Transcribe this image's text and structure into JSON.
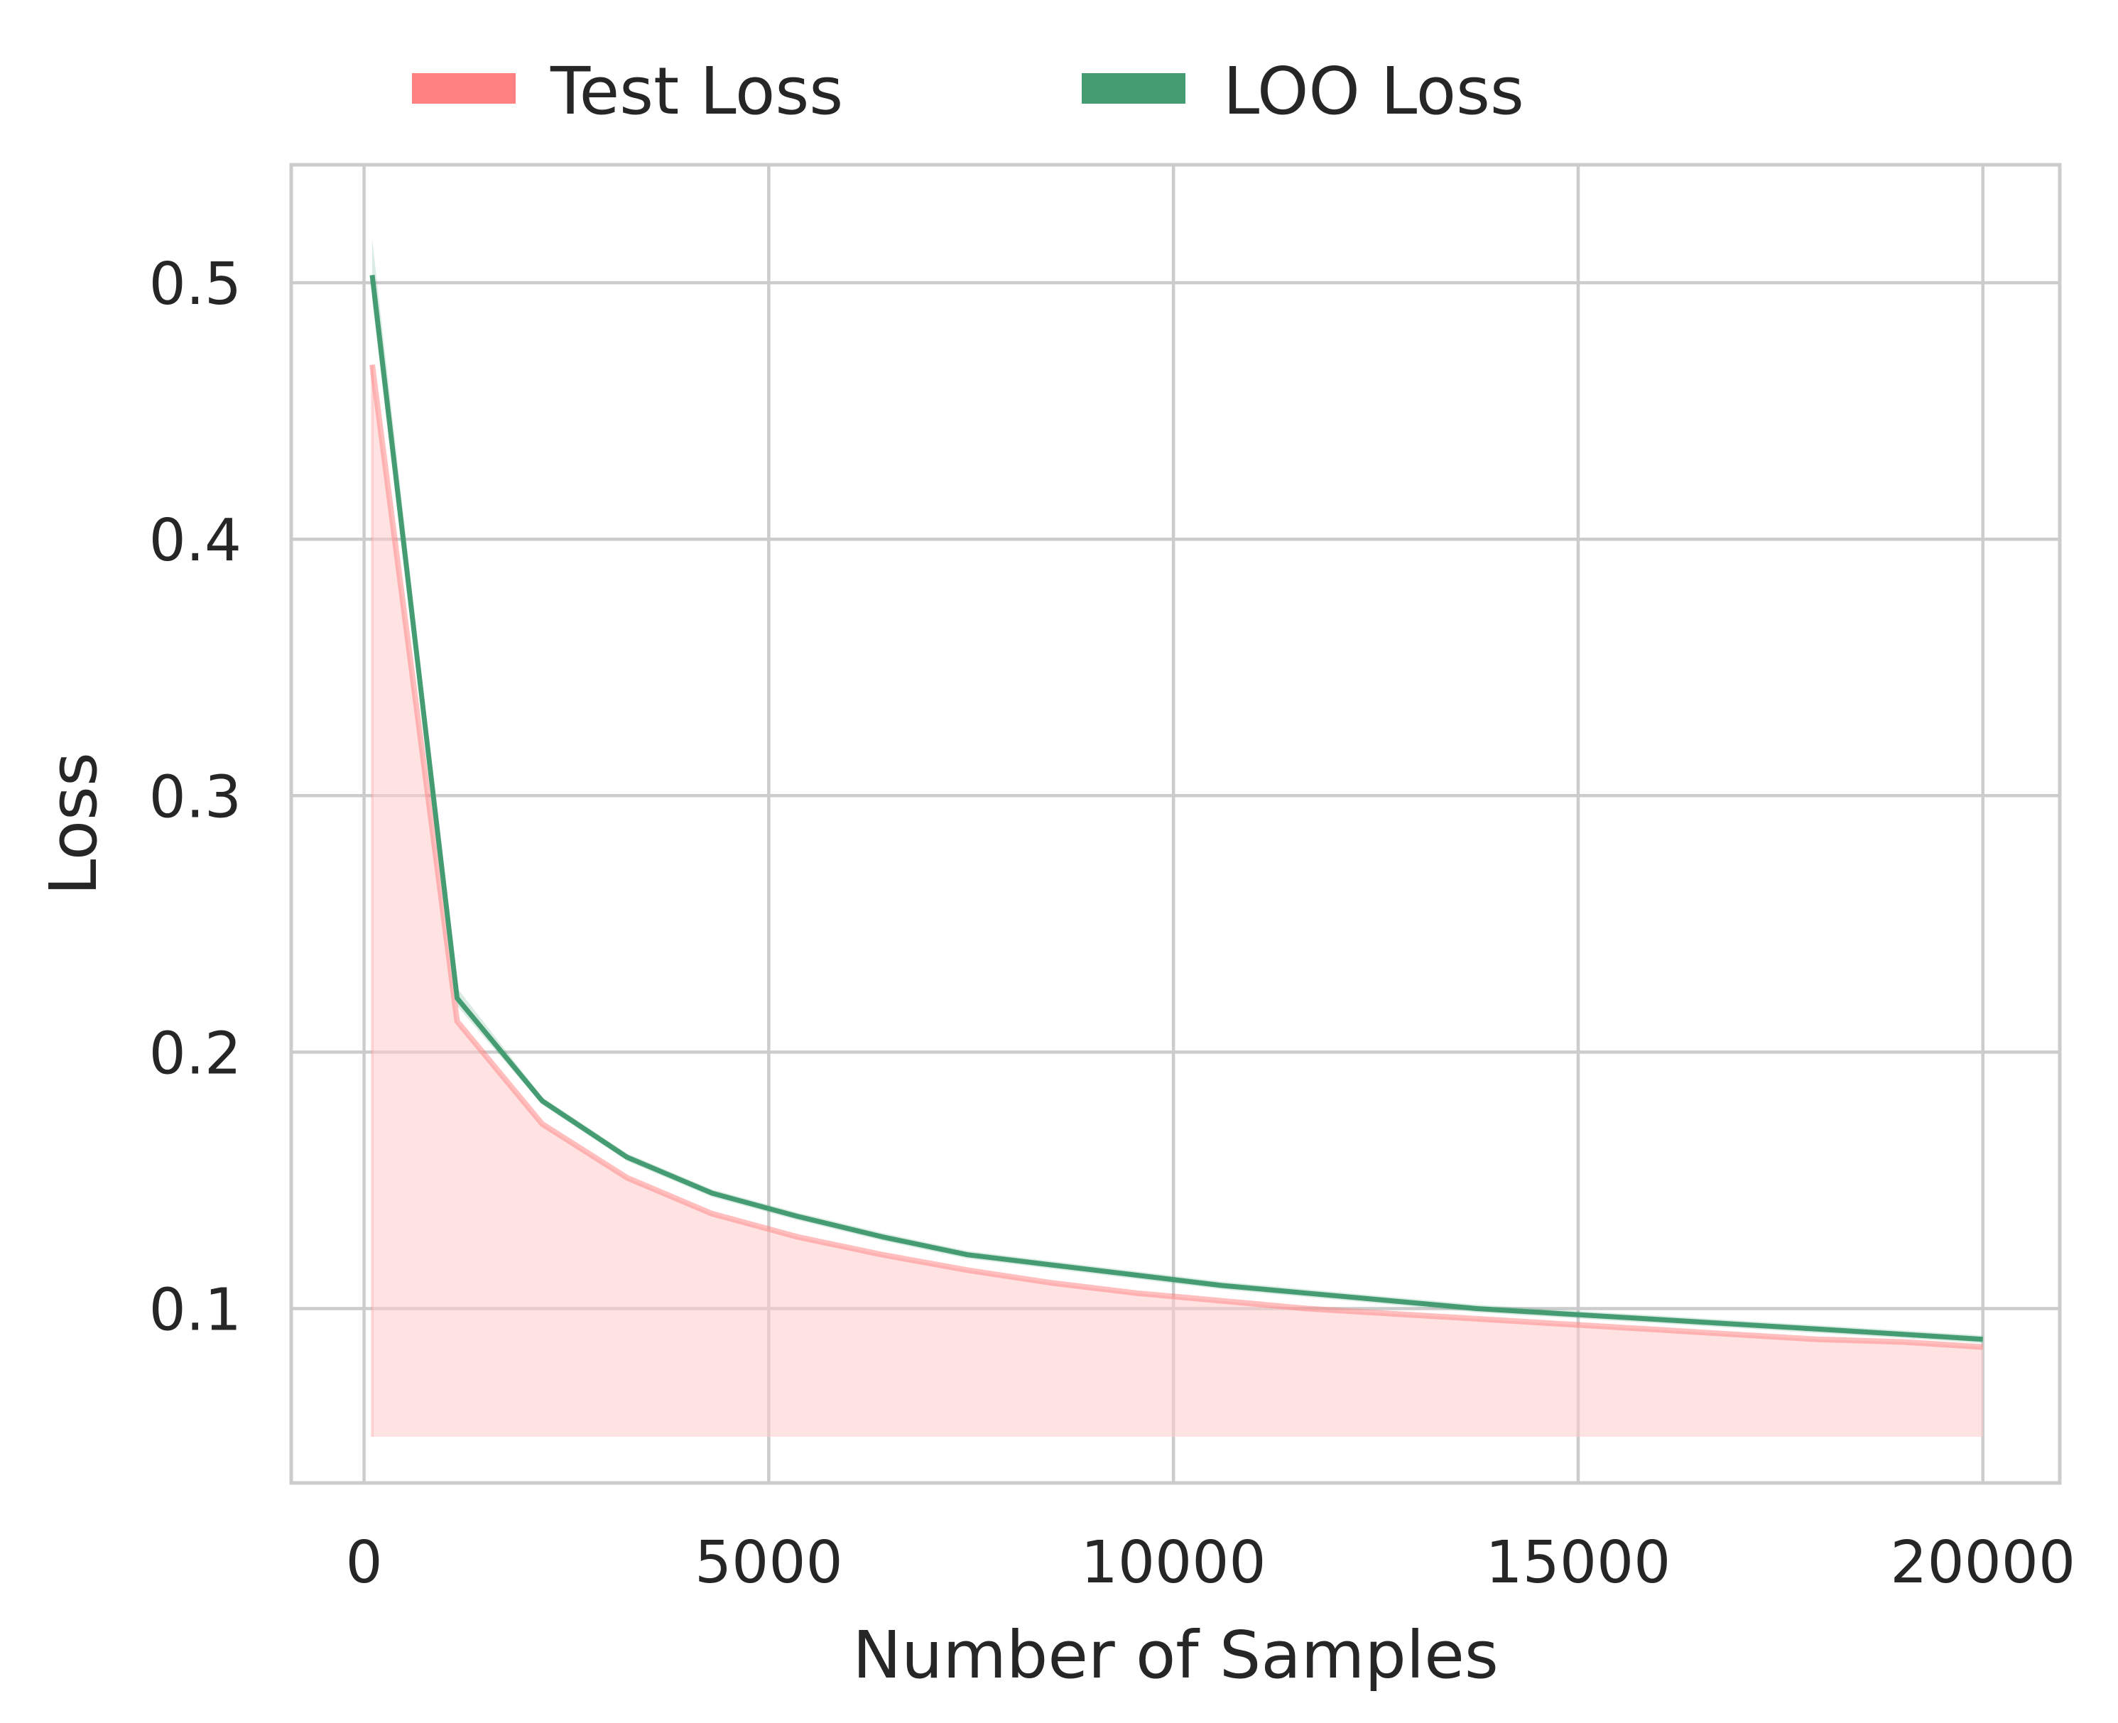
{
  "chart_data": {
    "type": "line",
    "title": "",
    "xlabel": "Number of Samples",
    "ylabel": "Loss",
    "xlim": [
      -900,
      20950
    ],
    "ylim": [
      0.032,
      0.546
    ],
    "xticks": [
      0,
      5000,
      10000,
      15000,
      20000
    ],
    "xtick_labels": [
      "0",
      "5000",
      "10000",
      "15000",
      "20000"
    ],
    "yticks": [
      0.1,
      0.2,
      0.3,
      0.4,
      0.5
    ],
    "ytick_labels": [
      "0.1",
      "0.2",
      "0.3",
      "0.4",
      "0.5"
    ],
    "grid": true,
    "legend_position": "top-center",
    "fill_baseline": 0.05,
    "x": [
      100,
      1150,
      2200,
      3250,
      4300,
      5350,
      6400,
      7450,
      8500,
      9550,
      10600,
      11650,
      12700,
      13750,
      14800,
      15850,
      16900,
      17950,
      19000,
      20000
    ],
    "series": [
      {
        "name": "Test Loss",
        "color": "#ff8080",
        "fill_color": "#ffcccc",
        "values": [
          0.468,
          0.212,
          0.172,
          0.151,
          0.137,
          0.128,
          0.121,
          0.115,
          0.11,
          0.106,
          0.103,
          0.1,
          0.098,
          0.096,
          0.094,
          0.092,
          0.09,
          0.088,
          0.087,
          0.085
        ]
      },
      {
        "name": "LOO Loss",
        "color": "#459c72",
        "band_color": "#459c72",
        "values": [
          0.503,
          0.221,
          0.181,
          0.159,
          0.145,
          0.136,
          0.128,
          0.121,
          0.117,
          0.113,
          0.109,
          0.106,
          0.103,
          0.1,
          0.098,
          0.096,
          0.094,
          0.092,
          0.09,
          0.088
        ]
      }
    ]
  }
}
